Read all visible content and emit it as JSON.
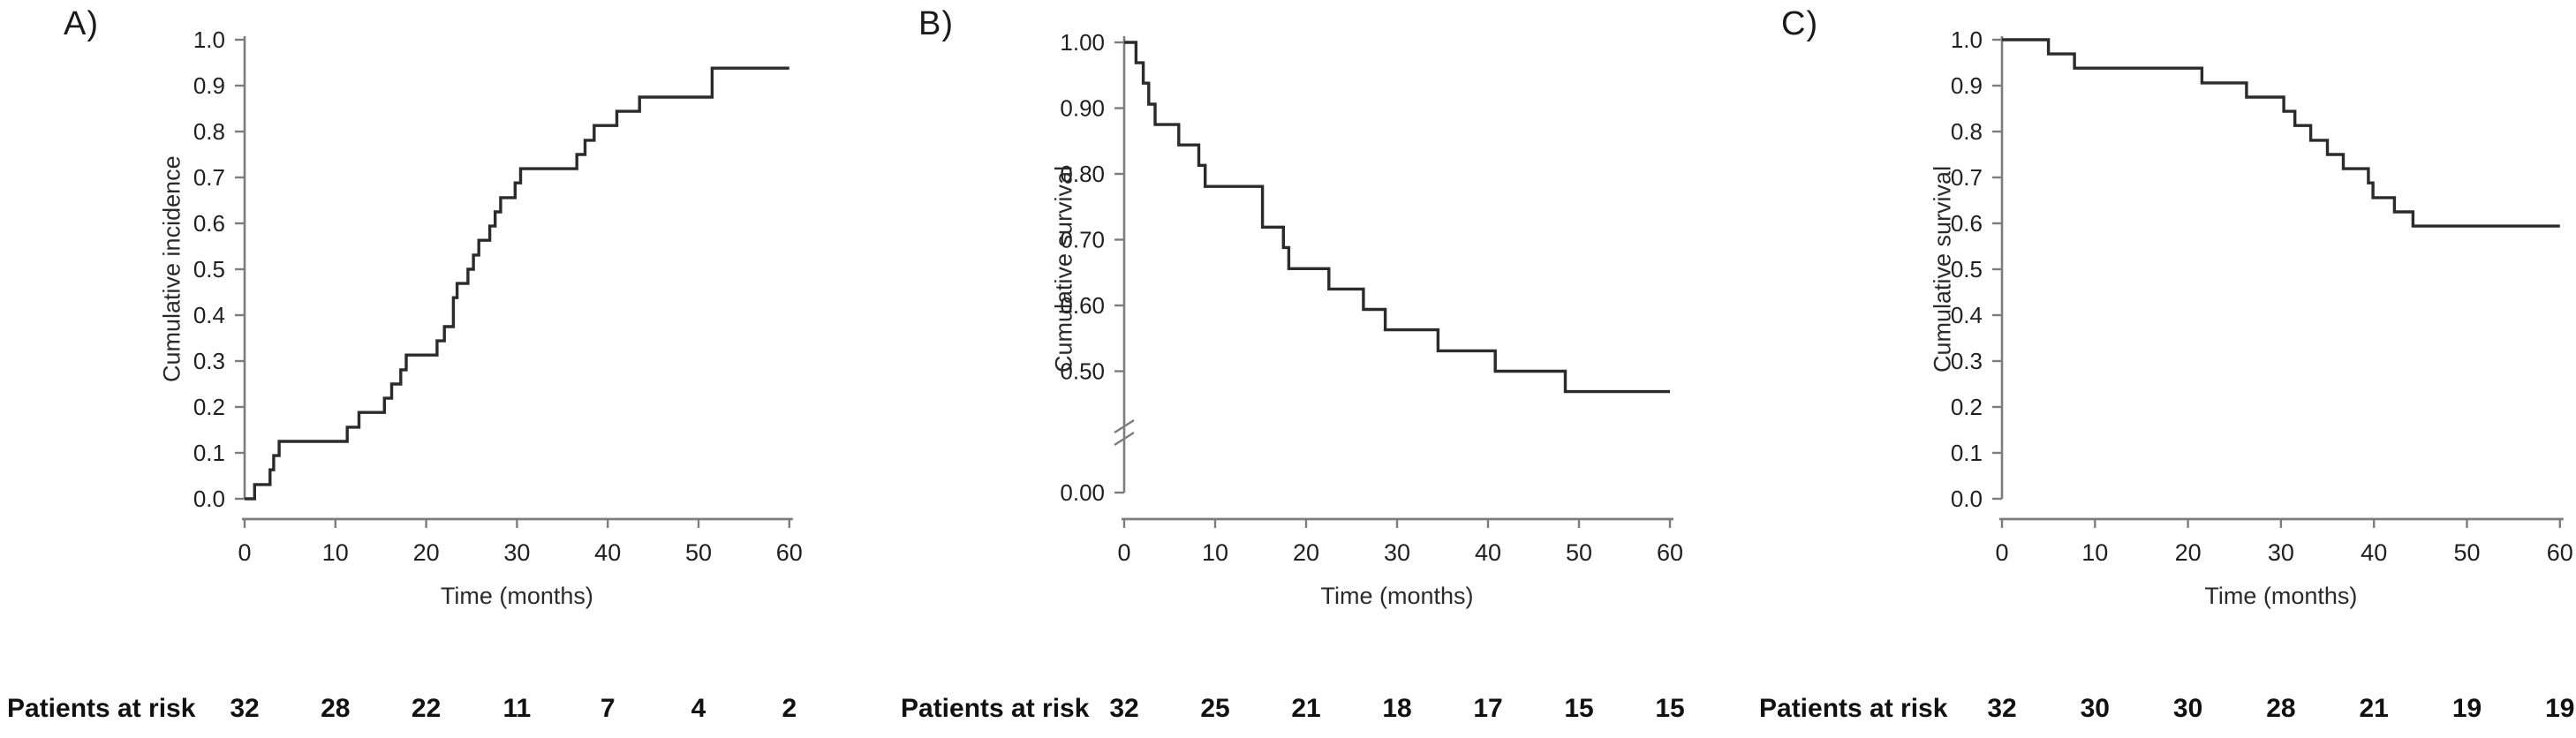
{
  "figure": {
    "patients_at_risk_label": "Patients at risk",
    "colors": {
      "curve": "#2b2b2b",
      "axis": "#7d7d7d",
      "text": "#1f1f1f"
    }
  },
  "chart_data": [
    {
      "type": "line",
      "step": true,
      "panel": "A)",
      "ylabel": "Cumulative incidence",
      "xlabel": "Time (months)",
      "x_range": [
        0,
        60
      ],
      "x_ticks": [
        0,
        10,
        20,
        30,
        40,
        50,
        60
      ],
      "y_range": [
        0,
        1
      ],
      "y_break": false,
      "y_ticks": [
        {
          "value": 1.0,
          "label": "1.0"
        },
        {
          "value": 0.9,
          "label": "0.9"
        },
        {
          "value": 0.8,
          "label": "0.8"
        },
        {
          "value": 0.7,
          "label": "0.7"
        },
        {
          "value": 0.6,
          "label": "0.6"
        },
        {
          "value": 0.5,
          "label": "0.5"
        },
        {
          "value": 0.4,
          "label": "0.4"
        },
        {
          "value": 0.3,
          "label": "0.3"
        },
        {
          "value": 0.2,
          "label": "0.2"
        },
        {
          "value": 0.1,
          "label": "0.1"
        },
        {
          "value": 0.0,
          "label": "0.0"
        }
      ],
      "steps": [
        [
          0,
          0.0
        ],
        [
          1.1,
          0.031
        ],
        [
          2.8,
          0.063
        ],
        [
          3.2,
          0.094
        ],
        [
          3.8,
          0.125
        ],
        [
          11.3,
          0.156
        ],
        [
          12.6,
          0.188
        ],
        [
          15.4,
          0.219
        ],
        [
          16.2,
          0.25
        ],
        [
          17.2,
          0.281
        ],
        [
          17.8,
          0.313
        ],
        [
          21.2,
          0.344
        ],
        [
          22.0,
          0.375
        ],
        [
          23.0,
          0.438
        ],
        [
          23.4,
          0.469
        ],
        [
          24.6,
          0.5
        ],
        [
          25.2,
          0.531
        ],
        [
          25.8,
          0.563
        ],
        [
          27.0,
          0.594
        ],
        [
          27.6,
          0.625
        ],
        [
          28.2,
          0.656
        ],
        [
          29.8,
          0.688
        ],
        [
          30.4,
          0.719
        ],
        [
          36.6,
          0.75
        ],
        [
          37.5,
          0.781
        ],
        [
          38.5,
          0.813
        ],
        [
          41.0,
          0.844
        ],
        [
          43.5,
          0.875
        ],
        [
          51.5,
          0.938
        ],
        [
          60,
          0.938
        ]
      ],
      "patients_at_risk": {
        "times": [
          0,
          10,
          20,
          30,
          40,
          50,
          60
        ],
        "counts": [
          32,
          28,
          22,
          11,
          7,
          4,
          2
        ]
      }
    },
    {
      "type": "line",
      "step": true,
      "panel": "B)",
      "ylabel": "Cumulative survival",
      "xlabel": "Time (months)",
      "x_range": [
        0,
        60
      ],
      "x_ticks": [
        0,
        10,
        20,
        30,
        40,
        50,
        60
      ],
      "y_range": [
        0,
        1
      ],
      "y_break": true,
      "y_ticks": [
        {
          "value": 1.0,
          "label": "1.00"
        },
        {
          "value": 0.9,
          "label": "0.90"
        },
        {
          "value": 0.8,
          "label": "0.80"
        },
        {
          "value": 0.7,
          "label": "0.70"
        },
        {
          "value": 0.6,
          "label": "0.60"
        },
        {
          "value": 0.5,
          "label": "0.50"
        },
        {
          "value": 0.0,
          "label": "0.00"
        }
      ],
      "steps": [
        [
          0,
          1.0
        ],
        [
          1.3,
          0.969
        ],
        [
          2.1,
          0.938
        ],
        [
          2.7,
          0.906
        ],
        [
          3.4,
          0.875
        ],
        [
          6.0,
          0.844
        ],
        [
          8.2,
          0.813
        ],
        [
          8.9,
          0.781
        ],
        [
          15.2,
          0.719
        ],
        [
          17.5,
          0.688
        ],
        [
          18.1,
          0.656
        ],
        [
          22.5,
          0.625
        ],
        [
          26.3,
          0.594
        ],
        [
          28.7,
          0.563
        ],
        [
          34.5,
          0.531
        ],
        [
          40.8,
          0.5
        ],
        [
          48.5,
          0.469
        ],
        [
          60,
          0.469
        ]
      ],
      "patients_at_risk": {
        "times": [
          0,
          10,
          20,
          30,
          40,
          50,
          60
        ],
        "counts": [
          32,
          25,
          21,
          18,
          17,
          15,
          15
        ]
      }
    },
    {
      "type": "line",
      "step": true,
      "panel": "C)",
      "ylabel": "Cumulative survival",
      "xlabel": "Time (months)",
      "x_range": [
        0,
        60
      ],
      "x_ticks": [
        0,
        10,
        20,
        30,
        40,
        50,
        60
      ],
      "y_range": [
        0,
        1
      ],
      "y_break": false,
      "y_ticks": [
        {
          "value": 1.0,
          "label": "1.0"
        },
        {
          "value": 0.9,
          "label": "0.9"
        },
        {
          "value": 0.8,
          "label": "0.8"
        },
        {
          "value": 0.7,
          "label": "0.7"
        },
        {
          "value": 0.6,
          "label": "0.6"
        },
        {
          "value": 0.5,
          "label": "0.5"
        },
        {
          "value": 0.4,
          "label": "0.4"
        },
        {
          "value": 0.3,
          "label": "0.3"
        },
        {
          "value": 0.2,
          "label": "0.2"
        },
        {
          "value": 0.1,
          "label": "0.1"
        },
        {
          "value": 0.0,
          "label": "0.0"
        }
      ],
      "steps": [
        [
          0,
          1.0
        ],
        [
          5.0,
          0.969
        ],
        [
          7.8,
          0.938
        ],
        [
          21.5,
          0.906
        ],
        [
          26.3,
          0.875
        ],
        [
          30.3,
          0.844
        ],
        [
          31.5,
          0.813
        ],
        [
          33.2,
          0.781
        ],
        [
          35.0,
          0.75
        ],
        [
          36.7,
          0.719
        ],
        [
          39.4,
          0.688
        ],
        [
          39.9,
          0.656
        ],
        [
          42.2,
          0.625
        ],
        [
          44.2,
          0.594
        ],
        [
          60,
          0.594
        ]
      ],
      "patients_at_risk": {
        "times": [
          0,
          10,
          20,
          30,
          40,
          50,
          60
        ],
        "counts": [
          32,
          30,
          30,
          28,
          21,
          19,
          19
        ]
      }
    }
  ]
}
